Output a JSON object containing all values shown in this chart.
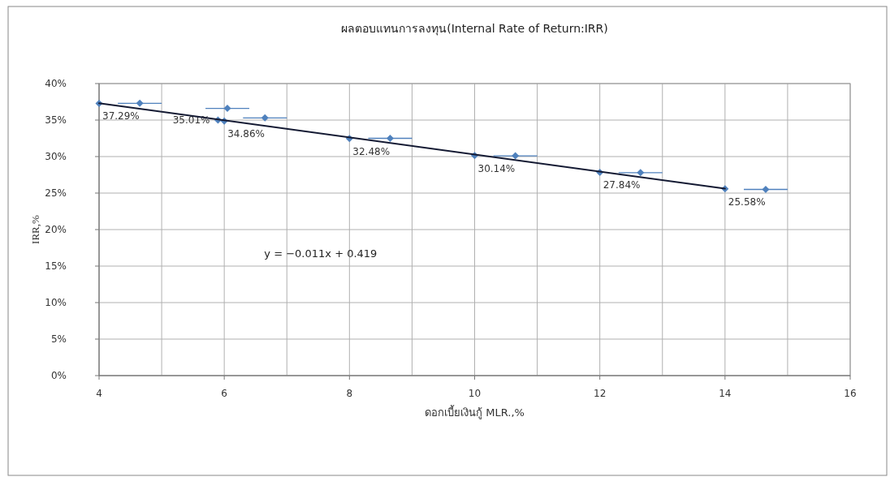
{
  "chart_data": {
    "type": "scatter",
    "title": "ผลตอบแทนการลงทุน(Internal Rate of Return:IRR)",
    "xlabel": "ดอกเบี้ยเงินกู้ MLR.,%",
    "ylabel": "IRR,%",
    "xlim": [
      4,
      16
    ],
    "xticks": [
      4,
      6,
      8,
      10,
      12,
      14,
      16
    ],
    "ylim": [
      0,
      40
    ],
    "yticks": [
      {
        "value": 0,
        "label": "0%"
      },
      {
        "value": 5,
        "label": "5%"
      },
      {
        "value": 10,
        "label": "10%"
      },
      {
        "value": 15,
        "label": "15%"
      },
      {
        "value": 20,
        "label": "20%"
      },
      {
        "value": 25,
        "label": "25%"
      },
      {
        "value": 30,
        "label": "30%"
      },
      {
        "value": 35,
        "label": "35%"
      },
      {
        "value": 40,
        "label": "40%"
      }
    ],
    "grid": true,
    "marker": "diamond",
    "series": [
      {
        "type": "scatter",
        "color": "#4f81bd",
        "x": [
          4,
          5.9,
          6,
          8,
          10,
          12,
          14
        ],
        "values": [
          37.29,
          35.01,
          34.86,
          32.48,
          30.14,
          27.84,
          25.58
        ],
        "value_labels": [
          "37.29%",
          "35.01%",
          "34.86%",
          "32.48%",
          "30.14%",
          "27.84%",
          "25.58%"
        ]
      },
      {
        "type": "scatter",
        "color": "#4f81bd",
        "x": [
          4.65,
          6.05,
          6.65,
          8.65,
          10.65,
          12.65,
          14.65
        ],
        "values": [
          37.3,
          36.6,
          35.3,
          32.5,
          30.1,
          27.8,
          25.5
        ],
        "xerrors": [
          0.35,
          0.35,
          0.35,
          0.35,
          0.35,
          0.35,
          0.35
        ]
      },
      {
        "type": "line",
        "color": "#141a33",
        "x": [
          4,
          14
        ],
        "values": [
          37.3,
          25.6
        ],
        "marker": "none"
      }
    ],
    "annotations": [
      "y = −0.011x + 0.419"
    ]
  }
}
